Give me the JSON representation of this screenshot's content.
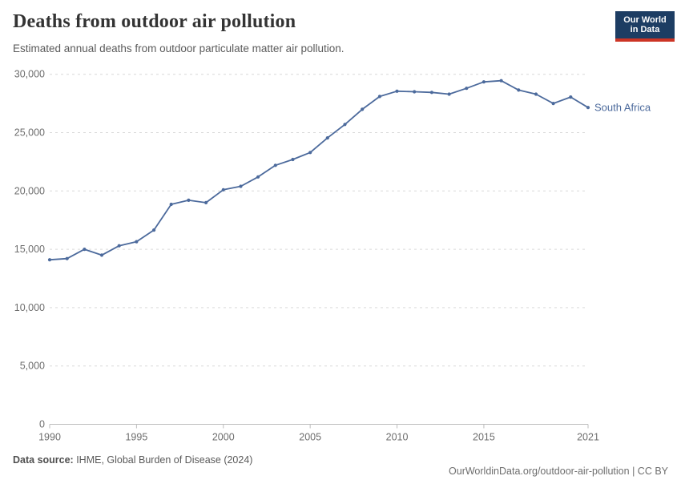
{
  "header": {
    "title": "Deaths from outdoor air pollution",
    "subtitle": "Estimated annual deaths from outdoor particulate matter air pollution.",
    "logo": {
      "line1": "Our World",
      "line2": "in Data"
    }
  },
  "chart_data": {
    "type": "line",
    "title": "Deaths from outdoor air pollution",
    "xlabel": "",
    "ylabel": "",
    "xlim": [
      1990,
      2021
    ],
    "ylim": [
      0,
      30000
    ],
    "xticks": [
      1990,
      1995,
      2000,
      2005,
      2010,
      2015,
      2021
    ],
    "yticks": [
      0,
      5000,
      10000,
      15000,
      20000,
      25000,
      30000
    ],
    "grid": "horizontal-dashed",
    "legend": "end-of-line-label",
    "x": [
      1990,
      1991,
      1992,
      1993,
      1994,
      1995,
      1996,
      1997,
      1998,
      1999,
      2000,
      2001,
      2002,
      2003,
      2004,
      2005,
      2006,
      2007,
      2008,
      2009,
      2010,
      2011,
      2012,
      2013,
      2014,
      2015,
      2016,
      2017,
      2018,
      2019,
      2020,
      2021
    ],
    "series": [
      {
        "name": "South Africa",
        "color": "#4c6a9c",
        "values": [
          14100,
          14200,
          15000,
          14500,
          15300,
          15650,
          16650,
          18850,
          19200,
          19000,
          20100,
          20400,
          21200,
          22200,
          22700,
          23300,
          24550,
          25700,
          27000,
          28100,
          28550,
          28500,
          28450,
          28300,
          28800,
          29350,
          29450,
          28650,
          28300,
          27500,
          28050,
          27150
        ]
      }
    ]
  },
  "footer": {
    "datasource_label": "Data source:",
    "datasource_value": " IHME, Global Burden of Disease (2024)",
    "link": "OurWorldinData.org/outdoor-air-pollution",
    "license": " | CC BY"
  },
  "colors": {
    "line": "#4c6a9c",
    "gridline": "#d9d9d9",
    "axis_line": "#bdbdbd",
    "tick_text": "#6e6e6e",
    "title": "#333333",
    "subtitle": "#5b5b5b",
    "logo_bg": "#1d3d63",
    "logo_accent": "#cc3425"
  }
}
